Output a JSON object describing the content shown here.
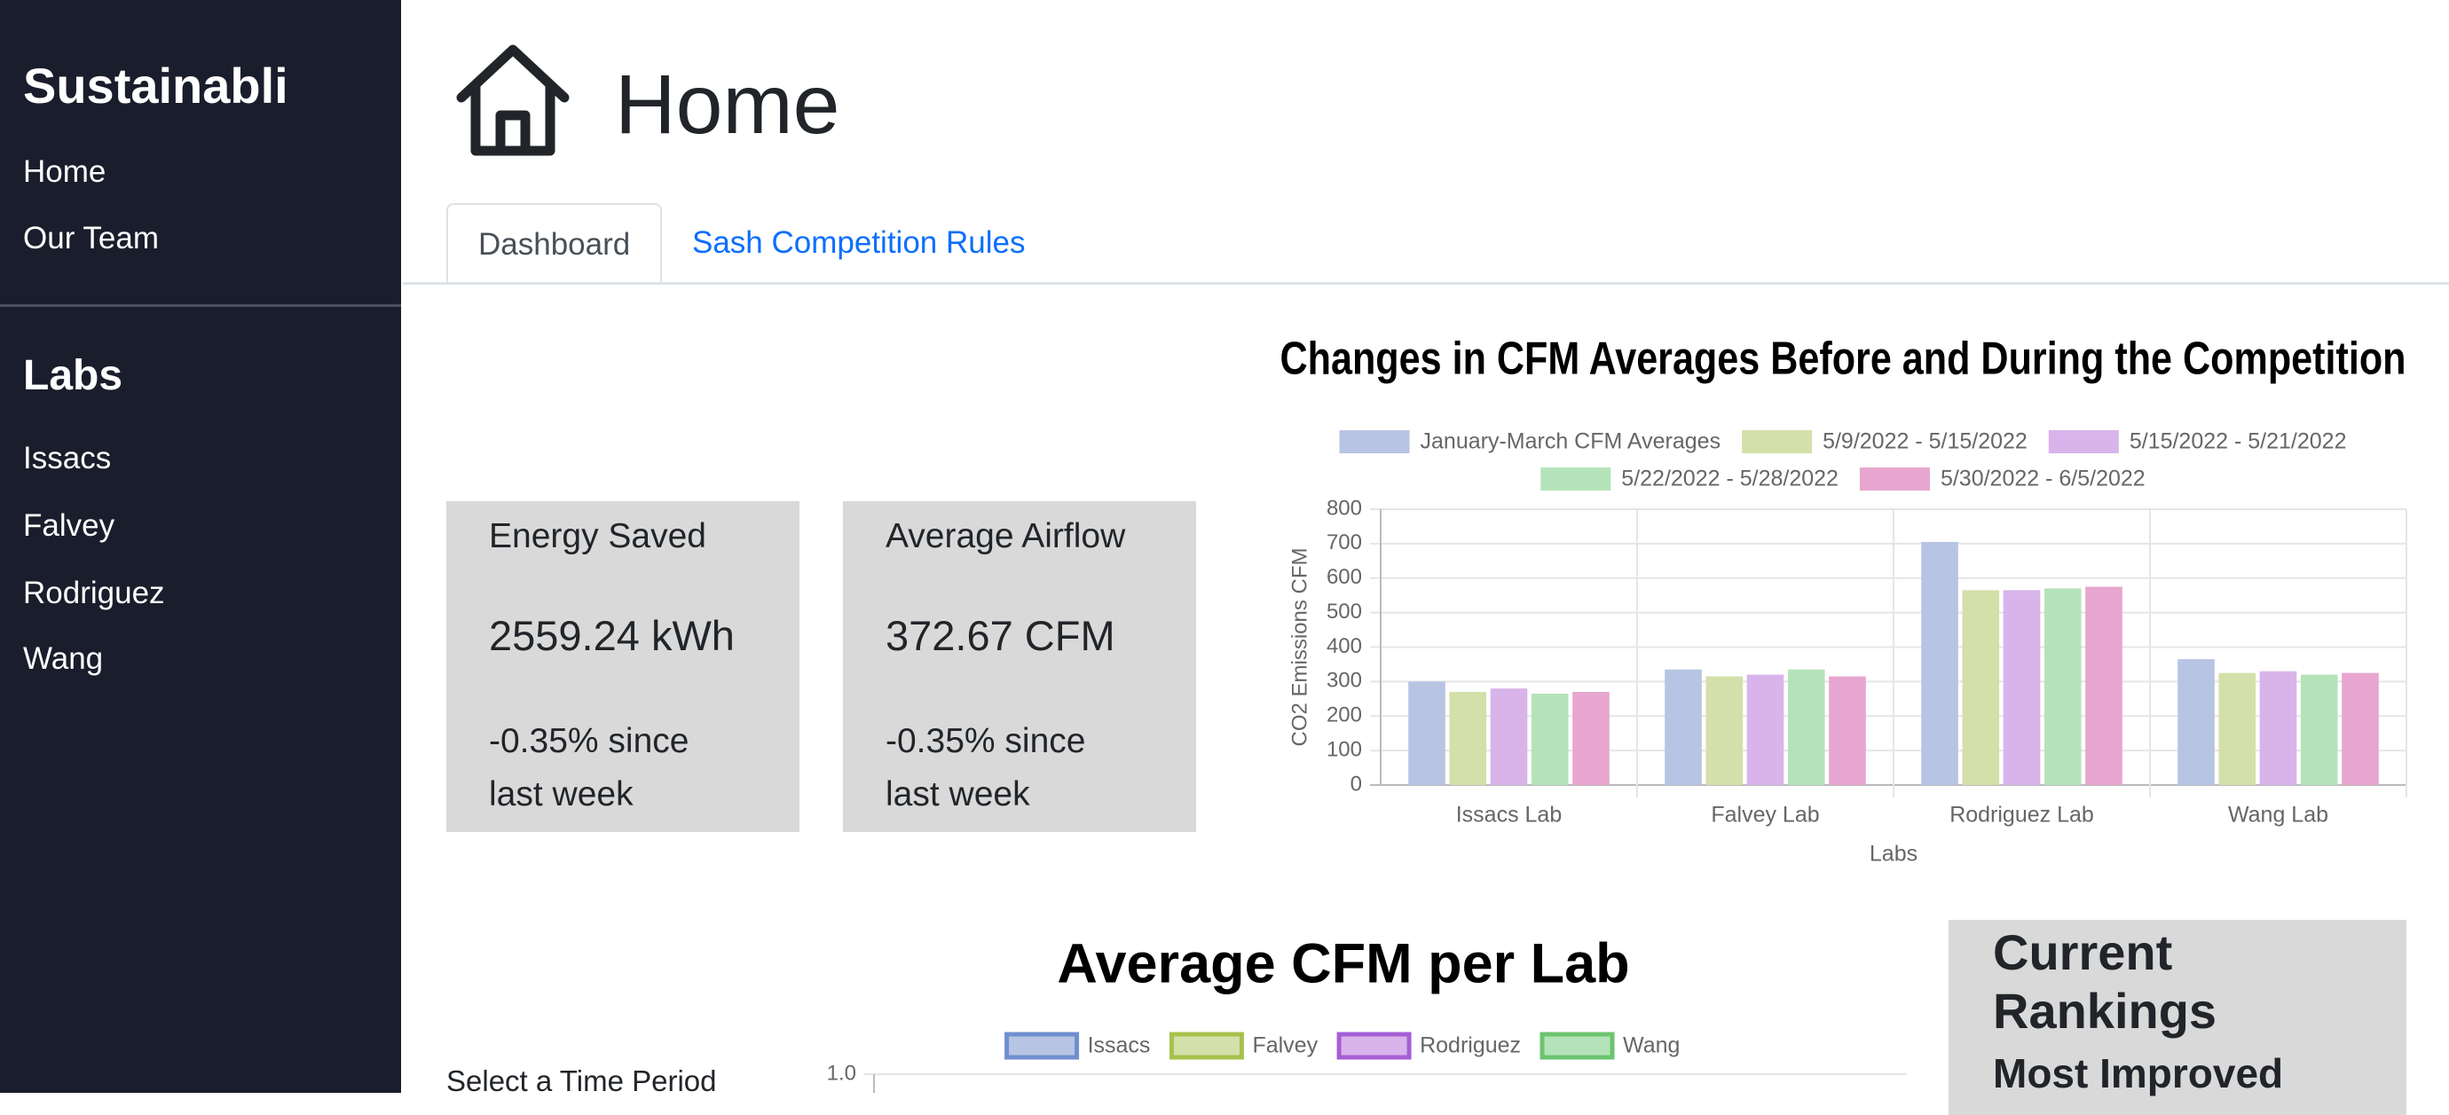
{
  "sidebar": {
    "brand": "Sustainabli",
    "nav": [
      "Home",
      "Our Team"
    ],
    "section_title": "Labs",
    "labs": [
      "Issacs",
      "Falvey",
      "Rodriguez",
      "Wang"
    ]
  },
  "header": {
    "title": "Home"
  },
  "tabs": [
    "Dashboard",
    "Sash Competition Rules"
  ],
  "cards": [
    {
      "title": "Energy Saved",
      "value": "2559.24 kWh",
      "change": "-0.35% since last week"
    },
    {
      "title": "Average Airflow",
      "value": "372.67 CFM",
      "change": "-0.35% since last week"
    }
  ],
  "time_period_label": "Select a Time Period",
  "rankings": {
    "title": "Current Rankings",
    "subtitle": "Most Improved"
  },
  "chart_data": [
    {
      "type": "bar",
      "title": "Changes in CFM Averages Before and During the Competition",
      "x_label": "Labs",
      "y_label": "CO2 Emissions CFM",
      "categories": [
        "Issacs Lab",
        "Falvey Lab",
        "Rodriguez Lab",
        "Wang Lab"
      ],
      "series": [
        {
          "name": "January-March CFM Averages",
          "color": "#b8c4e4",
          "values": [
            300,
            335,
            705,
            365
          ]
        },
        {
          "name": "5/9/2022 - 5/15/2022",
          "color": "#d3e0a9",
          "values": [
            270,
            315,
            565,
            325
          ]
        },
        {
          "name": "5/15/2022 - 5/21/2022",
          "color": "#d8b4ea",
          "values": [
            280,
            320,
            565,
            330
          ]
        },
        {
          "name": "5/22/2022 - 5/28/2022",
          "color": "#b5e3b9",
          "values": [
            265,
            335,
            570,
            320
          ]
        },
        {
          "name": "5/30/2022 - 6/5/2022",
          "color": "#e6a6cf",
          "values": [
            270,
            315,
            575,
            325
          ]
        }
      ],
      "ylim": [
        0,
        800
      ],
      "yticks": [
        0,
        100,
        200,
        300,
        400,
        500,
        600,
        700,
        800
      ],
      "grid": true
    },
    {
      "type": "bar",
      "title": "Average CFM per Lab",
      "series": [
        {
          "name": "Issacs",
          "color": "#b8c4e4",
          "border_color": "#6f8fcf"
        },
        {
          "name": "Falvey",
          "color": "#d3e0a9",
          "border_color": "#a6c24c"
        },
        {
          "name": "Rodriguez",
          "color": "#d8b4ea",
          "border_color": "#a65fd6"
        },
        {
          "name": "Wang",
          "color": "#b5e3b9",
          "border_color": "#6cc46f"
        }
      ],
      "ylim": [
        0,
        1
      ],
      "yticks": [
        {
          "value": 1,
          "label": "1.0"
        }
      ],
      "grid": true
    }
  ]
}
